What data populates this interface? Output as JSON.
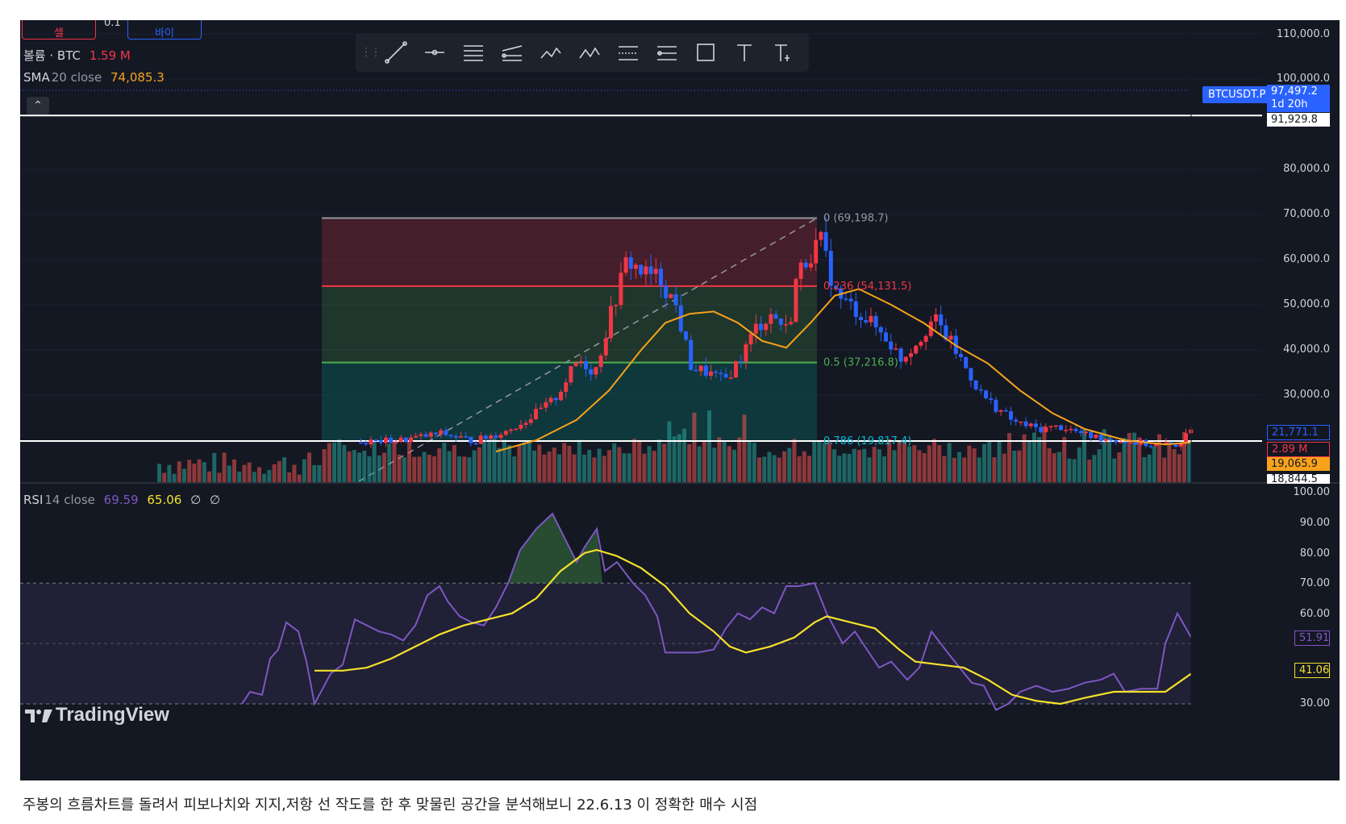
{
  "trade": {
    "sell_label": "셀",
    "buy_label": "바이",
    "spread": "0.1"
  },
  "legend": {
    "volume_label": "볼륨 · BTC",
    "volume_value": "1.59 M",
    "sma_label": "SMA",
    "sma_params": "20 close",
    "sma_value": "74,085.3",
    "rsi_label": "RSI",
    "rsi_params": "14 close",
    "rsi_value": "69.59",
    "rsi_ma_value": "65.06",
    "rsi_extra_1": "∅",
    "rsi_extra_2": "∅"
  },
  "toolbar": {
    "tools": [
      "trend-line",
      "horizontal-ray",
      "parallel-channel",
      "fib-retracement",
      "xabcd-pattern",
      "abcd-pattern",
      "long-position",
      "short-position",
      "rectangle",
      "text",
      "anchored-text"
    ],
    "label_15": "1 5",
    "label_ac": "A C"
  },
  "price_axis": {
    "labels": [
      "110,000.0",
      "100,000.0",
      "80,000.0",
      "70,000.0",
      "60,000.0",
      "50,000.0",
      "40,000.0",
      "30,000.0"
    ],
    "symbol": "BTCUSDT.P",
    "current_price": "97,497.2",
    "countdown": "1d 20h",
    "hline_upper": "91,929.8",
    "tag_blue": "21,771.1",
    "tag_volume": "2.89 M",
    "tag_sma": "19,065.9",
    "tag_white_low": "18,844.5"
  },
  "rsi_axis": {
    "labels": [
      "100.00",
      "90.00",
      "80.00",
      "70.00",
      "60.00",
      "30.00"
    ],
    "rsi_tag": "51.91",
    "rsi_ma_tag": "41.06"
  },
  "fib": {
    "level_0": "0 (69,198.7)",
    "level_0236": "0.236 (54,131.5)",
    "level_05": "0.5 (37,216.8)",
    "level_0786": "0.786 (19,817.4)"
  },
  "colors": {
    "up": "#f23645",
    "down": "#2962ff",
    "sma": "#f7a21b",
    "rsi": "#7e57c2",
    "rsi_ma": "#f5e12b"
  },
  "watermark": "TradingView",
  "caption": "주봉의 흐름차트를 돌려서 피보나치와 지지,저항 선 작도를 한 후 맞물린 공간을 분석해보니 22.6.13 이 정확한 매수 시점"
}
